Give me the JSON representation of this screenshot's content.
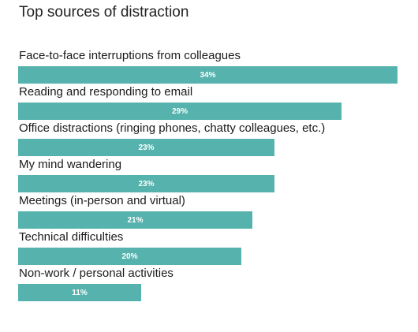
{
  "chart_data": {
    "type": "bar",
    "orientation": "horizontal",
    "title": "Top sources of distraction",
    "categories": [
      "Face-to-face interruptions from colleagues",
      "Reading and responding to email",
      "Office distractions (ringing phones, chatty colleagues, etc.)",
      "My mind wandering",
      "Meetings (in-person and virtual)",
      "Technical difficulties",
      "Non-work / personal activities"
    ],
    "values": [
      34,
      29,
      23,
      23,
      21,
      20,
      11
    ],
    "value_labels": [
      "34%",
      "29%",
      "23%",
      "23%",
      "21%",
      "20%",
      "11%"
    ],
    "unit": "%",
    "xlim": [
      0,
      34
    ],
    "grid": false,
    "legend": "none",
    "bar_color": "#55b2ad"
  }
}
